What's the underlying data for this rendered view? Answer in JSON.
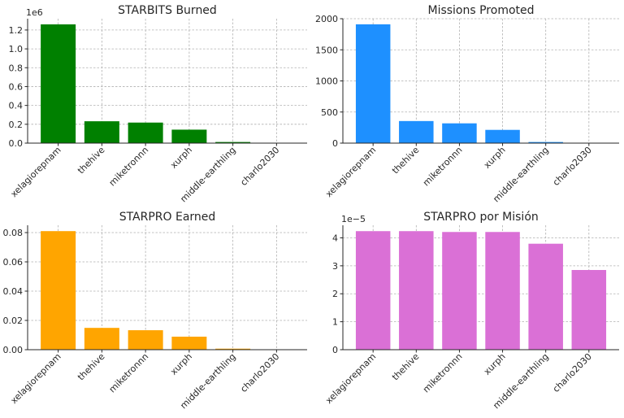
{
  "chart_data": [
    {
      "type": "bar",
      "title": "STARBITS Burned",
      "categories": [
        "xelagiorepnam",
        "thehive",
        "miketronnn",
        "xurph",
        "middle-earthling",
        "charlo2030"
      ],
      "values": [
        1260000,
        232000,
        218000,
        143000,
        12000,
        3000
      ],
      "color": "#008000",
      "ylim": [
        0,
        1320000
      ],
      "yticks": [
        0,
        0.2,
        0.4,
        0.6,
        0.8,
        1.0,
        1.2
      ],
      "tick_multiplier": 1000000,
      "offset_text": "1e6",
      "grid": true
    },
    {
      "type": "bar",
      "title": "Missions Promoted",
      "categories": [
        "xelagiorepnam",
        "thehive",
        "miketronnn",
        "xurph",
        "middle-earthling",
        "charlo2030"
      ],
      "values": [
        1910,
        355,
        318,
        213,
        18,
        6
      ],
      "color": "#1e90ff",
      "ylim": [
        0,
        2000
      ],
      "yticks": [
        0,
        500,
        1000,
        1500,
        2000
      ],
      "tick_multiplier": 1,
      "offset_text": "",
      "grid": true
    },
    {
      "type": "bar",
      "title": "STARPRO Earned",
      "categories": [
        "xelagiorepnam",
        "thehive",
        "miketronnn",
        "xurph",
        "middle-earthling",
        "charlo2030"
      ],
      "values": [
        0.081,
        0.0149,
        0.0133,
        0.0089,
        0.0007,
        0.00017
      ],
      "color": "#ffa500",
      "ylim": [
        0,
        0.085
      ],
      "yticks": [
        0.0,
        0.02,
        0.04,
        0.06,
        0.08
      ],
      "tick_format": 2,
      "tick_multiplier": 1,
      "offset_text": "",
      "grid": true
    },
    {
      "type": "bar",
      "title": "STARPRO por Misión",
      "categories": [
        "xelagiorepnam",
        "thehive",
        "miketronnn",
        "xurph",
        "middle-earthling",
        "charlo2030"
      ],
      "values": [
        4.24e-05,
        4.24e-05,
        4.21e-05,
        4.21e-05,
        3.79e-05,
        2.85e-05
      ],
      "color": "#da70d6",
      "ylim": [
        0,
        4.45e-05
      ],
      "yticks": [
        0,
        1,
        2,
        3,
        4
      ],
      "tick_multiplier": 1e-05,
      "offset_text": "1e−5",
      "grid": true
    }
  ]
}
